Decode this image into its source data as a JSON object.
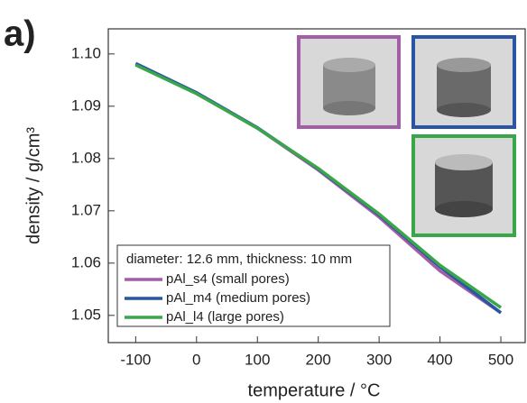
{
  "panel_label": "a)",
  "chart_data": {
    "type": "line",
    "x_label": "temperature / °C",
    "y_label": "density / g/cm³",
    "x": [
      -100,
      0,
      100,
      200,
      300,
      400,
      500
    ],
    "series": [
      {
        "name": "pAl_s4 (small pores)",
        "color": "#a35ea8",
        "values": [
          1.098,
          1.0925,
          1.0858,
          1.0778,
          1.0688,
          1.0585,
          1.0505
        ]
      },
      {
        "name": "pAl_m4 (medium pores)",
        "color": "#2a55a5",
        "values": [
          1.0982,
          1.0926,
          1.0859,
          1.078,
          1.0692,
          1.0593,
          1.0505
        ]
      },
      {
        "name": "pAl_l4 (large pores)",
        "color": "#3aa64a",
        "values": [
          1.0979,
          1.0924,
          1.0858,
          1.0781,
          1.0694,
          1.0596,
          1.0515
        ]
      }
    ],
    "legend_title": "diameter: 12.6 mm, thickness: 10 mm",
    "xlim": [
      -145,
      540
    ],
    "ylim": [
      1.0448,
      1.1048
    ],
    "xticks": [
      -100,
      0,
      100,
      200,
      300,
      400,
      500
    ],
    "yticks": [
      1.05,
      1.06,
      1.07,
      1.08,
      1.09,
      {
        "value": 1.1,
        "label": "1.10"
      }
    ]
  }
}
